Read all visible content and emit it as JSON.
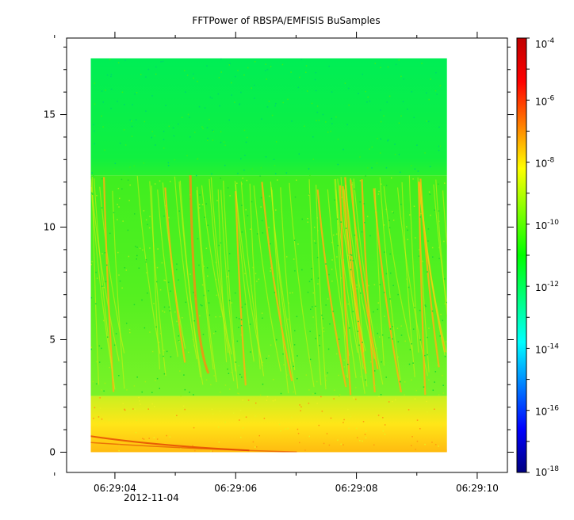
{
  "chart_data": {
    "type": "heatmap",
    "title": "FFTPower of RBSPA/EMFISIS  BuSamples",
    "xlabel": "",
    "ylabel": "",
    "x_ticks": [
      "06:29:04",
      "06:29:06",
      "06:29:08",
      "06:29:10"
    ],
    "x_date_label": "2012-11-04",
    "x_range_seconds": [
      3.2,
      10.5
    ],
    "data_x_range_seconds": [
      3.6,
      9.5
    ],
    "y_ticks": [
      0,
      5,
      10,
      15
    ],
    "ylim": [
      -0.9,
      18.4
    ],
    "data_y_range": [
      0,
      17.5
    ],
    "colorbar": {
      "scale": "log",
      "range": [
        1e-18,
        0.0001
      ],
      "ticks": [
        {
          "base": "10",
          "exp": "-4"
        },
        {
          "base": "10",
          "exp": "-6"
        },
        {
          "base": "10",
          "exp": "-8"
        },
        {
          "base": "10",
          "exp": "-10"
        },
        {
          "base": "10",
          "exp": "-12"
        },
        {
          "base": "10",
          "exp": "-14"
        },
        {
          "base": "10",
          "exp": "-16"
        },
        {
          "base": "10",
          "exp": "-18"
        }
      ],
      "colormap": [
        "#00007f",
        "#0000ff",
        "#007fff",
        "#00ffff",
        "#00ff7f",
        "#00ff00",
        "#7fff00",
        "#ffff00",
        "#ff7f00",
        "#ff0000",
        "#bf0000"
      ]
    },
    "features": {
      "upper_band": {
        "y_range": [
          12.3,
          17.5
        ],
        "log_power": -12.5
      },
      "middle_band": {
        "y_range": [
          2.5,
          12.3
        ],
        "log_power": -10.5
      },
      "lower_band": {
        "y_range": [
          0,
          2.5
        ],
        "log_power": -8.5
      }
    },
    "grid": false
  }
}
